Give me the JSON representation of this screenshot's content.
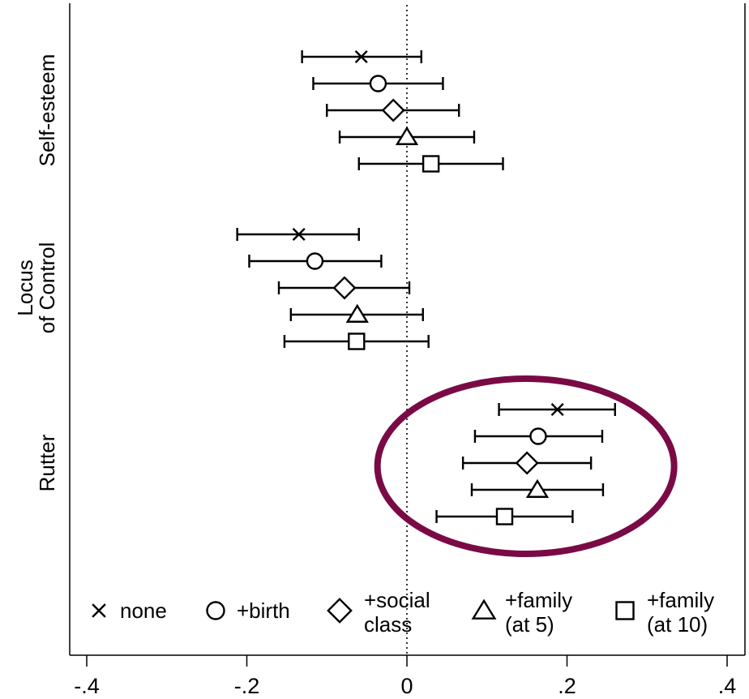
{
  "chart_data": {
    "type": "scatter",
    "subtype": "coefficient-plot-with-confidence-intervals",
    "xlim": [
      -0.4,
      0.4
    ],
    "x_ticks": [
      {
        "value": -0.4,
        "label": "-.4"
      },
      {
        "value": -0.2,
        "label": "-.2"
      },
      {
        "value": 0,
        "label": "0"
      },
      {
        "value": 0.2,
        "label": ".2"
      },
      {
        "value": 0.4,
        "label": ".4"
      }
    ],
    "reference_line": {
      "x": 0,
      "style": "dotted"
    },
    "groups": [
      {
        "label": "Self-esteem",
        "label_lines": [
          "Self-esteem"
        ]
      },
      {
        "label": "Locus of Control",
        "label_lines": [
          "Locus",
          "of Control"
        ]
      },
      {
        "label": "Rutter",
        "label_lines": [
          "Rutter"
        ]
      }
    ],
    "series": [
      {
        "name": "none",
        "marker": "x",
        "points": [
          {
            "group": "Self-esteem",
            "estimate": -0.057,
            "lower": -0.131,
            "upper": 0.018
          },
          {
            "group": "Locus of Control",
            "estimate": -0.135,
            "lower": -0.212,
            "upper": -0.06
          },
          {
            "group": "Rutter",
            "estimate": 0.188,
            "lower": 0.115,
            "upper": 0.26
          }
        ]
      },
      {
        "name": "+birth",
        "marker": "circle",
        "points": [
          {
            "group": "Self-esteem",
            "estimate": -0.036,
            "lower": -0.117,
            "upper": 0.045
          },
          {
            "group": "Locus of Control",
            "estimate": -0.115,
            "lower": -0.197,
            "upper": -0.032
          },
          {
            "group": "Rutter",
            "estimate": 0.164,
            "lower": 0.085,
            "upper": 0.244
          }
        ]
      },
      {
        "name": "+social class",
        "label_lines": [
          "+social",
          "class"
        ],
        "marker": "diamond",
        "points": [
          {
            "group": "Self-esteem",
            "estimate": -0.017,
            "lower": -0.1,
            "upper": 0.065
          },
          {
            "group": "Locus of Control",
            "estimate": -0.078,
            "lower": -0.16,
            "upper": 0.003
          },
          {
            "group": "Rutter",
            "estimate": 0.15,
            "lower": 0.07,
            "upper": 0.23
          }
        ]
      },
      {
        "name": "+family (at 5)",
        "label_lines": [
          "+family",
          "(at 5)"
        ],
        "marker": "triangle",
        "points": [
          {
            "group": "Self-esteem",
            "estimate": 0.0,
            "lower": -0.084,
            "upper": 0.084
          },
          {
            "group": "Locus of Control",
            "estimate": -0.062,
            "lower": -0.145,
            "upper": 0.02
          },
          {
            "group": "Rutter",
            "estimate": 0.163,
            "lower": 0.081,
            "upper": 0.245
          }
        ]
      },
      {
        "name": "+family (at 10)",
        "label_lines": [
          "+family",
          "(at 10)"
        ],
        "marker": "square",
        "points": [
          {
            "group": "Self-esteem",
            "estimate": 0.03,
            "lower": -0.06,
            "upper": 0.12
          },
          {
            "group": "Locus of Control",
            "estimate": -0.063,
            "lower": -0.153,
            "upper": 0.027
          },
          {
            "group": "Rutter",
            "estimate": 0.122,
            "lower": 0.037,
            "upper": 0.207
          }
        ]
      }
    ],
    "highlight": {
      "shape": "ellipse",
      "group": "Rutter",
      "color": "#7a0a45"
    },
    "legend": {
      "position": "bottom-inside"
    },
    "grid": false
  }
}
